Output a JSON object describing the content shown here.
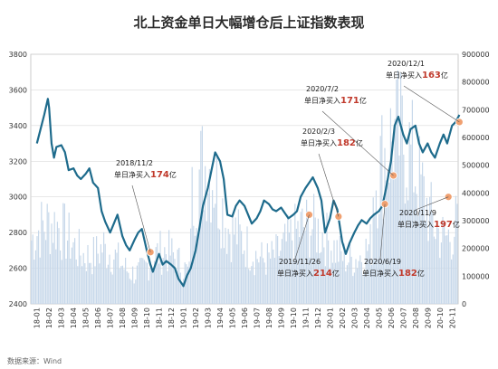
{
  "chart_data": {
    "type": "bar+line",
    "title": "北上资金单日大幅增仓后上证指数表现",
    "x_labels": [
      "18-01",
      "18-02",
      "18-03",
      "18-04",
      "18-05",
      "18-06",
      "18-07",
      "18-08",
      "18-09",
      "18-10",
      "18-11",
      "18-12",
      "19-01",
      "19-02",
      "19-03",
      "19-04",
      "19-05",
      "19-06",
      "19-07",
      "19-08",
      "19-09",
      "19-10",
      "19-11",
      "19-12",
      "20-01",
      "20-02",
      "20-03",
      "20-04",
      "20-05",
      "20-06",
      "20-07",
      "20-08",
      "20-09",
      "20-10",
      "20-11"
    ],
    "y_left": {
      "min": 2400,
      "max": 3800,
      "ticks": [
        2400,
        2600,
        2800,
        3000,
        3200,
        3400,
        3600,
        3800
      ]
    },
    "y_right": {
      "min": 0,
      "max": 900000,
      "ticks": [
        0,
        100000,
        200000,
        300000,
        400000,
        500000,
        600000,
        700000,
        800000,
        900000
      ]
    },
    "line_series": {
      "color": "#1e6b8c",
      "points": [
        [
          0,
          3300
        ],
        [
          0.3,
          3380
        ],
        [
          0.6,
          3460
        ],
        [
          0.9,
          3550
        ],
        [
          1.0,
          3500
        ],
        [
          1.2,
          3300
        ],
        [
          1.4,
          3220
        ],
        [
          1.6,
          3280
        ],
        [
          2.0,
          3290
        ],
        [
          2.3,
          3250
        ],
        [
          2.6,
          3150
        ],
        [
          3.0,
          3160
        ],
        [
          3.3,
          3120
        ],
        [
          3.6,
          3100
        ],
        [
          4.0,
          3130
        ],
        [
          4.3,
          3160
        ],
        [
          4.6,
          3080
        ],
        [
          5.0,
          3050
        ],
        [
          5.3,
          2920
        ],
        [
          5.6,
          2860
        ],
        [
          6.0,
          2800
        ],
        [
          6.3,
          2850
        ],
        [
          6.6,
          2900
        ],
        [
          7.0,
          2780
        ],
        [
          7.3,
          2730
        ],
        [
          7.6,
          2700
        ],
        [
          8.0,
          2760
        ],
        [
          8.3,
          2800
        ],
        [
          8.6,
          2820
        ],
        [
          9.0,
          2700
        ],
        [
          9.3,
          2620
        ],
        [
          9.5,
          2580
        ],
        [
          10.0,
          2680
        ],
        [
          10.3,
          2620
        ],
        [
          10.6,
          2640
        ],
        [
          11.0,
          2620
        ],
        [
          11.3,
          2600
        ],
        [
          11.6,
          2540
        ],
        [
          12.0,
          2500
        ],
        [
          12.3,
          2560
        ],
        [
          12.6,
          2600
        ],
        [
          13.0,
          2700
        ],
        [
          13.3,
          2820
        ],
        [
          13.6,
          2950
        ],
        [
          14.0,
          3050
        ],
        [
          14.3,
          3150
        ],
        [
          14.6,
          3250
        ],
        [
          15.0,
          3200
        ],
        [
          15.3,
          3100
        ],
        [
          15.6,
          2900
        ],
        [
          16.0,
          2890
        ],
        [
          16.3,
          2950
        ],
        [
          16.6,
          2980
        ],
        [
          17.0,
          2950
        ],
        [
          17.3,
          2900
        ],
        [
          17.6,
          2850
        ],
        [
          18.0,
          2880
        ],
        [
          18.3,
          2920
        ],
        [
          18.6,
          2980
        ],
        [
          19.0,
          2960
        ],
        [
          19.3,
          2930
        ],
        [
          19.6,
          2920
        ],
        [
          20.0,
          2940
        ],
        [
          20.3,
          2910
        ],
        [
          20.6,
          2880
        ],
        [
          21.0,
          2900
        ],
        [
          21.3,
          2920
        ],
        [
          21.6,
          3000
        ],
        [
          22.0,
          3050
        ],
        [
          22.3,
          3080
        ],
        [
          22.6,
          3110
        ],
        [
          23.0,
          3050
        ],
        [
          23.3,
          2980
        ],
        [
          23.6,
          2800
        ],
        [
          24.0,
          2880
        ],
        [
          24.3,
          2980
        ],
        [
          24.6,
          2930
        ],
        [
          25.0,
          2750
        ],
        [
          25.3,
          2680
        ],
        [
          25.6,
          2740
        ],
        [
          26.0,
          2800
        ],
        [
          26.3,
          2840
        ],
        [
          26.6,
          2870
        ],
        [
          27.0,
          2850
        ],
        [
          27.3,
          2880
        ],
        [
          27.6,
          2900
        ],
        [
          28.0,
          2920
        ],
        [
          28.3,
          2950
        ],
        [
          28.6,
          3050
        ],
        [
          29.0,
          3200
        ],
        [
          29.3,
          3400
        ],
        [
          29.6,
          3450
        ],
        [
          30.0,
          3350
        ],
        [
          30.3,
          3300
        ],
        [
          30.6,
          3380
        ],
        [
          31.0,
          3400
        ],
        [
          31.3,
          3300
        ],
        [
          31.6,
          3250
        ],
        [
          32.0,
          3300
        ],
        [
          32.3,
          3250
        ],
        [
          32.6,
          3220
        ],
        [
          33.0,
          3300
        ],
        [
          33.3,
          3350
        ],
        [
          33.6,
          3300
        ],
        [
          34.0,
          3400
        ],
        [
          34.3,
          3420
        ],
        [
          34.6,
          3460
        ]
      ]
    },
    "bar_series": {
      "color": "#c7d8ea"
    },
    "markers": [
      {
        "x": 9.3,
        "y": 2690
      },
      {
        "x": 22.3,
        "y": 2900
      },
      {
        "x": 24.7,
        "y": 2890
      },
      {
        "x": 28.5,
        "y": 2960
      },
      {
        "x": 29.2,
        "y": 3120
      },
      {
        "x": 33.7,
        "y": 3000
      },
      {
        "x": 34.6,
        "y": 3420
      }
    ],
    "annotations": [
      {
        "date": "2018/11/2",
        "label": "单日净买入",
        "value": "174",
        "unit": "亿"
      },
      {
        "date": "2019/11/26",
        "label": "单日净买入",
        "value": "214",
        "unit": "亿"
      },
      {
        "date": "2020/2/3",
        "label": "单日净买入",
        "value": "182",
        "unit": "亿"
      },
      {
        "date": "2020/6/19",
        "label": "单日净买入",
        "value": "182",
        "unit": "亿"
      },
      {
        "date": "2020/7/2",
        "label": "单日净买入",
        "value": "171",
        "unit": "亿"
      },
      {
        "date": "2020/11/9",
        "label": "单日净买入",
        "value": "197",
        "unit": "亿"
      },
      {
        "date": "2020/12/1",
        "label": "单日净买入",
        "value": "163",
        "unit": "亿"
      }
    ],
    "marker_color": "#f0a070",
    "source": "数据来源：Wind"
  }
}
